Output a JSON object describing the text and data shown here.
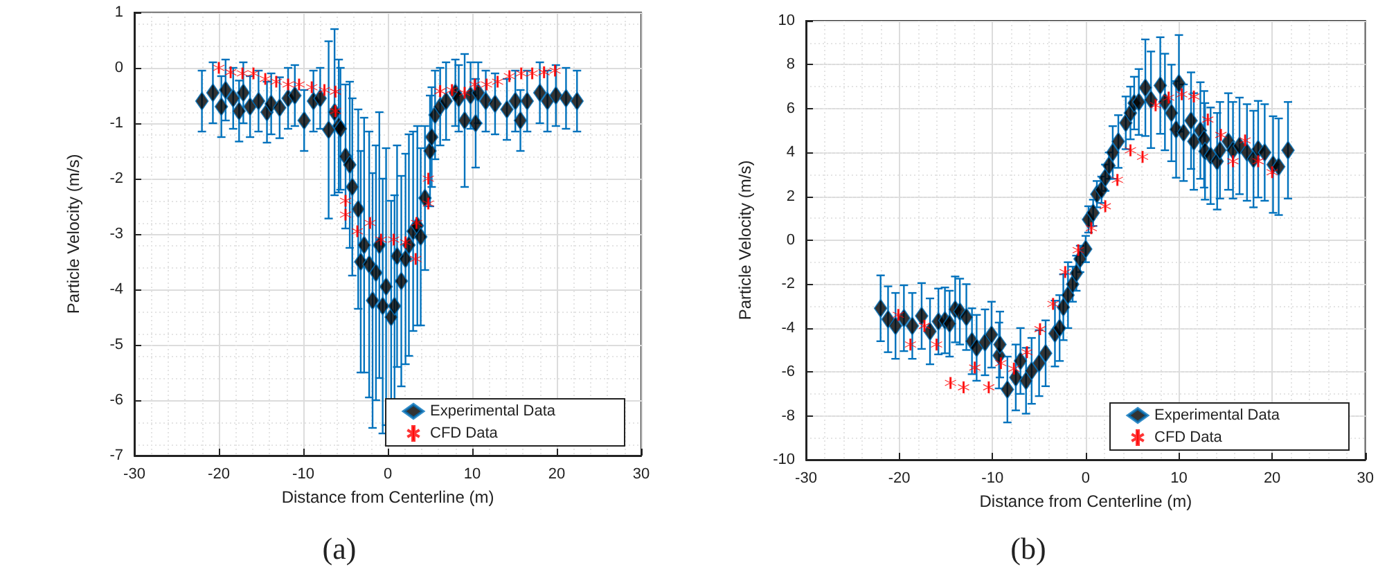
{
  "chart_data": [
    {
      "type": "scatter",
      "xlabel": "Distance from Centerline (m)",
      "ylabel": "Particle Velocity (m/s)",
      "annotations": [
        "(a)"
      ],
      "xlim": [
        -30,
        30
      ],
      "xticks": [
        -30,
        -20,
        -10,
        0,
        10,
        20,
        30
      ],
      "ylim": [
        -7,
        1
      ],
      "yticks": [
        -7,
        -6,
        -5,
        -4,
        -3,
        -2,
        -1,
        0,
        1
      ],
      "grid": true,
      "legend": "bottom right",
      "series": [
        {
          "name": "Experimental Data",
          "color": "#000000",
          "marker": "diamond",
          "x": [
            -22,
            -20.7,
            -19.7,
            -19.2,
            -18.3,
            -17.6,
            -17.1,
            -16.3,
            -15.3,
            -14.3,
            -13.8,
            -12.8,
            -11.8,
            -11,
            -9.9,
            -8.8,
            -8,
            -7,
            -6.3,
            -5.8,
            -5.6,
            -5,
            -4.5,
            -4.2,
            -3.5,
            -3.2,
            -2.8,
            -2.2,
            -1.8,
            -1.4,
            -1,
            -0.6,
            -0.2,
            0.4,
            0.8,
            1.1,
            1.6,
            2.1,
            2.5,
            3,
            3.5,
            3.9,
            4.4,
            5,
            5.2,
            5.6,
            6.2,
            6.9,
            8,
            8.4,
            9.1,
            9.8,
            10.4,
            10.7,
            11.6,
            12.7,
            14.1,
            15.1,
            15.7,
            16.5,
            18,
            18.9,
            19.9,
            21.1,
            22.4
          ],
          "values": [
            -0.6,
            -0.45,
            -0.7,
            -0.4,
            -0.55,
            -0.78,
            -0.45,
            -0.7,
            -0.6,
            -0.8,
            -0.65,
            -0.72,
            -0.55,
            -0.5,
            -0.95,
            -0.6,
            -0.55,
            -1.12,
            -0.8,
            -1.05,
            -1.1,
            -1.6,
            -1.75,
            -2.15,
            -2.55,
            -3.5,
            -3.2,
            -3.55,
            -4.2,
            -3.7,
            -3.2,
            -4.3,
            -3.95,
            -4.5,
            -4.3,
            -3.4,
            -3.85,
            -3.45,
            -3.2,
            -2.95,
            -2.85,
            -3.05,
            -2.35,
            -1.5,
            -1.25,
            -0.85,
            -0.7,
            -0.6,
            -0.45,
            -0.55,
            -0.95,
            -0.5,
            -1.0,
            -0.45,
            -0.6,
            -0.65,
            -0.75,
            -0.6,
            -0.95,
            -0.6,
            -0.45,
            -0.6,
            -0.5,
            -0.55,
            -0.6
          ],
          "errors": [
            0.55,
            0.55,
            0.55,
            0.55,
            0.55,
            0.55,
            0.55,
            0.55,
            0.55,
            0.55,
            0.55,
            0.55,
            0.55,
            0.55,
            0.55,
            0.55,
            0.55,
            1.6,
            1.5,
            1.2,
            1.1,
            1.3,
            1.5,
            1.6,
            1.8,
            2.0,
            2.3,
            2.4,
            2.3,
            2.3,
            2.4,
            2.3,
            2.5,
            2.1,
            2.0,
            2.0,
            1.9,
            1.9,
            2.0,
            1.8,
            1.8,
            1.6,
            1.3,
            1.0,
            0.9,
            0.8,
            0.7,
            0.7,
            0.6,
            0.6,
            1.2,
            0.6,
            0.8,
            0.55,
            0.55,
            0.55,
            0.55,
            0.55,
            0.55,
            0.55,
            0.55,
            0.55,
            0.55,
            0.55,
            0.55
          ]
        },
        {
          "name": "CFD Data",
          "color": "#ff0000",
          "marker": "cross",
          "x": [
            -20,
            -18.6,
            -17.2,
            -15.9,
            -14.5,
            -13.2,
            -11.8,
            -10.5,
            -9,
            -7.5,
            -6.2,
            -6.2,
            -5,
            -5,
            -3.6,
            -2.1,
            -0.8,
            0.7,
            2.1,
            3.3,
            3.4,
            4.8,
            4.8,
            6.2,
            7.6,
            9.1,
            10.3,
            11.7,
            13,
            14.4,
            15.8,
            17.1,
            18.5,
            19.8
          ],
          "values": [
            0,
            -0.08,
            -0.1,
            -0.1,
            -0.2,
            -0.25,
            -0.3,
            -0.3,
            -0.35,
            -0.4,
            -0.43,
            -0.78,
            -2.4,
            -2.65,
            -2.95,
            -2.8,
            -3.1,
            -3.1,
            -3.15,
            -3.45,
            -2.8,
            -2.0,
            -2.45,
            -0.42,
            -0.4,
            -0.45,
            -0.3,
            -0.3,
            -0.25,
            -0.15,
            -0.1,
            -0.1,
            -0.08,
            -0.05
          ]
        }
      ]
    },
    {
      "type": "scatter",
      "xlabel": "Distance from Centerline (m)",
      "ylabel": "Particle Velocity (m/s)",
      "annotations": [
        "(b)"
      ],
      "xlim": [
        -30,
        30
      ],
      "xticks": [
        -30,
        -20,
        -10,
        0,
        10,
        20,
        30
      ],
      "ylim": [
        -10,
        10
      ],
      "yticks": [
        -10,
        -8,
        -6,
        -4,
        -2,
        0,
        2,
        4,
        6,
        8,
        10
      ],
      "grid": true,
      "legend": "bottom right",
      "series": [
        {
          "name": "Experimental Data",
          "color": "#000000",
          "marker": "diamond",
          "x": [
            -22,
            -21.2,
            -20.4,
            -19.5,
            -18.6,
            -17.6,
            -16.7,
            -15.8,
            -15.1,
            -14.6,
            -14,
            -13.5,
            -12.8,
            -12.2,
            -11.7,
            -10.8,
            -10.1,
            -9.3,
            -9.2,
            -8.4,
            -7.5,
            -7,
            -6.4,
            -5.8,
            -5,
            -4.3,
            -3.3,
            -2.8,
            -2.4,
            -1.9,
            -1.4,
            -1,
            -0.6,
            0,
            0.3,
            0.8,
            1.2,
            1.7,
            2.1,
            2.5,
            2.9,
            3.5,
            4.3,
            4.8,
            5.2,
            5.7,
            6.4,
            7,
            8,
            8.5,
            9.2,
            9.7,
            10,
            10.5,
            11.3,
            11.6,
            12.3,
            12.7,
            12.8,
            13.4,
            14.1,
            14.4,
            15.3,
            15.8,
            16.5,
            17.3,
            18,
            18.5,
            19.2,
            20.1,
            20.7,
            21.7
          ],
          "values": [
            -3.1,
            -3.6,
            -3.9,
            -3.55,
            -3.9,
            -3.45,
            -4.15,
            -3.7,
            -3.65,
            -3.8,
            -3.15,
            -3.25,
            -3.5,
            -4.6,
            -4.9,
            -4.65,
            -4.3,
            -5.25,
            -4.75,
            -6.8,
            -6.25,
            -5.5,
            -6.4,
            -5.95,
            -5.6,
            -5.15,
            -4.25,
            -4.0,
            -3.05,
            -2.5,
            -2.0,
            -1.5,
            -0.85,
            -0.4,
            0.95,
            1.25,
            2.1,
            2.3,
            2.85,
            3.4,
            4.0,
            4.5,
            5.35,
            5.8,
            6.25,
            6.3,
            6.95,
            6.4,
            7.05,
            6.3,
            5.8,
            5.05,
            7.15,
            4.9,
            5.45,
            4.5,
            5.0,
            4.6,
            4.05,
            3.85,
            3.6,
            4.1,
            4.5,
            4.1,
            4.3,
            4.0,
            3.7,
            4.15,
            4.0,
            3.45,
            3.35,
            4.1
          ],
          "errors": [
            1.5,
            1.5,
            1.5,
            1.5,
            1.5,
            1.5,
            1.5,
            1.5,
            1.5,
            1.5,
            1.5,
            1.5,
            1.5,
            1.5,
            1.5,
            1.5,
            1.5,
            1.5,
            1.5,
            1.5,
            1.5,
            1.5,
            1.5,
            1.5,
            1.5,
            1.5,
            1.5,
            1.5,
            1.5,
            1.5,
            0.8,
            0.8,
            0.6,
            0.6,
            0.6,
            0.6,
            0.6,
            0.6,
            0.6,
            0.6,
            1.2,
            1.2,
            1.2,
            1.2,
            1.2,
            1.5,
            2.2,
            2.2,
            2.2,
            2.2,
            2.2,
            2.2,
            2.2,
            2.2,
            2.2,
            2.2,
            2.2,
            2.2,
            2.2,
            2.2,
            2.2,
            2.2,
            2.2,
            2.2,
            2.2,
            2.2,
            2.2,
            2.2,
            2.2,
            2.2,
            2.2,
            2.2
          ]
        },
        {
          "name": "CFD Data",
          "color": "#ff0000",
          "marker": "cross",
          "x": [
            -20.1,
            -18.8,
            -17.3,
            -16,
            -14.5,
            -13.1,
            -11.9,
            -10.4,
            -9.1,
            -7.7,
            -6.3,
            -4.9,
            -3.5,
            -2.2,
            -0.8,
            0.6,
            2.1,
            3.4,
            4.8,
            6.1,
            7.5,
            8.9,
            10.3,
            11.6,
            13.1,
            14.5,
            15.8,
            17.1,
            18.5,
            20
          ],
          "values": [
            -3.4,
            -4.75,
            -3.9,
            -4.75,
            -6.5,
            -6.7,
            -5.8,
            -6.7,
            -5.6,
            -5.85,
            -5.1,
            -4.05,
            -2.9,
            -1.45,
            -0.45,
            0.55,
            1.55,
            2.75,
            4.1,
            3.8,
            6.15,
            6.5,
            6.65,
            6.55,
            5.5,
            4.8,
            3.6,
            4.55,
            3.6,
            3.1
          ]
        }
      ]
    }
  ]
}
